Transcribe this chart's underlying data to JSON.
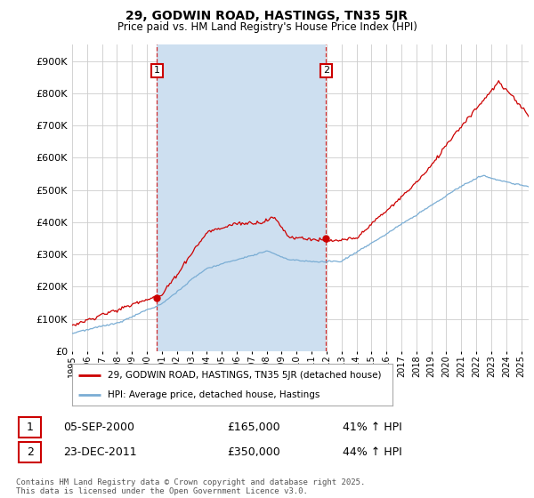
{
  "title": "29, GODWIN ROAD, HASTINGS, TN35 5JR",
  "subtitle": "Price paid vs. HM Land Registry's House Price Index (HPI)",
  "ytick_values": [
    0,
    100000,
    200000,
    300000,
    400000,
    500000,
    600000,
    700000,
    800000,
    900000
  ],
  "ylim": [
    0,
    950000
  ],
  "background_color": "#dce8f5",
  "highlight_color": "#cddff0",
  "white": "#ffffff",
  "red_color": "#cc0000",
  "blue_color": "#7aadd4",
  "grid_color": "#cccccc",
  "ann1_x": 2000.67,
  "ann1_y": 165000,
  "ann2_x": 2011.97,
  "ann2_y": 350000,
  "legend_line1": "29, GODWIN ROAD, HASTINGS, TN35 5JR (detached house)",
  "legend_line2": "HPI: Average price, detached house, Hastings",
  "footer": "Contains HM Land Registry data © Crown copyright and database right 2025.\nThis data is licensed under the Open Government Licence v3.0.",
  "xmin": 1995,
  "xmax": 2025.5
}
